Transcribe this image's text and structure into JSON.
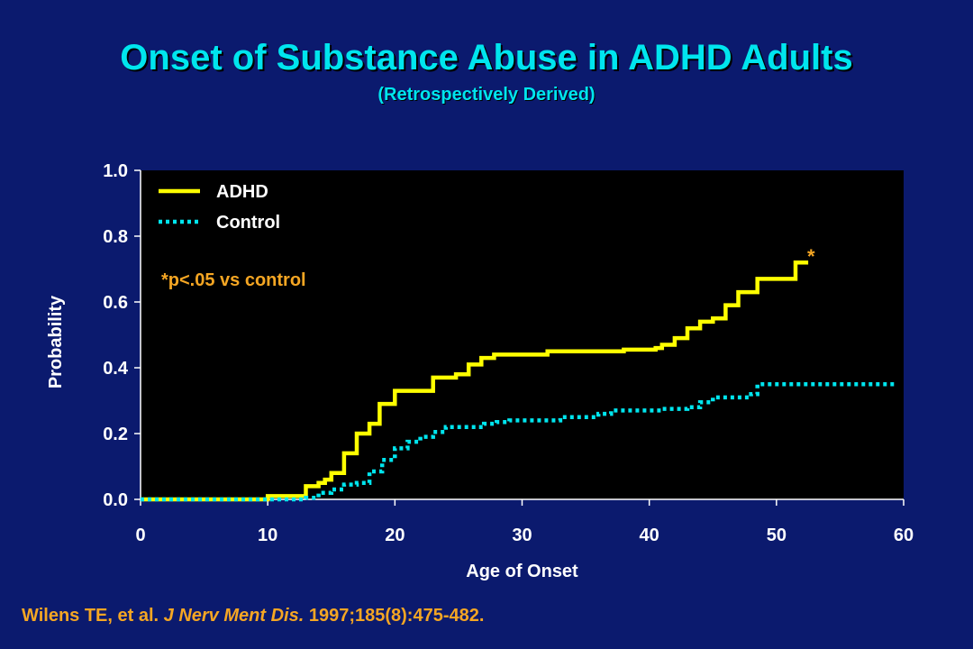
{
  "title": "Onset of Substance Abuse in ADHD Adults",
  "subtitle": "(Retrospectively Derived)",
  "citation": {
    "authors": "Wilens TE, et al.",
    "journal": "J Nerv Ment Dis.",
    "details": "1997;185(8):475-482."
  },
  "colors": {
    "background": "#0b1a6e",
    "plot_area": "#000000",
    "title": "#00e5ee",
    "adhd": "#ffff00",
    "control": "#00e5ee",
    "annotation": "#f5a623",
    "axis_text": "#ffffff"
  },
  "chart_data": {
    "type": "line",
    "xlabel": "Age of Onset",
    "ylabel": "Probability",
    "xlim": [
      0,
      60
    ],
    "ylim": [
      0,
      1.0
    ],
    "xticks": [
      "0",
      "10",
      "20",
      "30",
      "40",
      "50",
      "60"
    ],
    "yticks": [
      "0.0",
      "0.2",
      "0.4",
      "0.6",
      "0.8",
      "1.0"
    ],
    "grid": false,
    "legend": "top-left",
    "annotation": "*p<.05 vs control",
    "significance_marker": "*",
    "series": [
      {
        "name": "ADHD",
        "style": "solid",
        "points": [
          [
            0,
            0.0
          ],
          [
            10,
            0.0
          ],
          [
            10,
            0.01
          ],
          [
            13,
            0.01
          ],
          [
            13,
            0.04
          ],
          [
            14,
            0.04
          ],
          [
            14,
            0.05
          ],
          [
            14.5,
            0.05
          ],
          [
            14.5,
            0.06
          ],
          [
            15,
            0.06
          ],
          [
            15,
            0.08
          ],
          [
            16,
            0.08
          ],
          [
            16,
            0.14
          ],
          [
            17,
            0.14
          ],
          [
            17,
            0.2
          ],
          [
            18,
            0.2
          ],
          [
            18,
            0.23
          ],
          [
            18.8,
            0.23
          ],
          [
            18.8,
            0.29
          ],
          [
            20,
            0.29
          ],
          [
            20,
            0.33
          ],
          [
            23,
            0.33
          ],
          [
            23,
            0.37
          ],
          [
            24.8,
            0.37
          ],
          [
            24.8,
            0.38
          ],
          [
            25.8,
            0.38
          ],
          [
            25.8,
            0.41
          ],
          [
            26.8,
            0.41
          ],
          [
            26.8,
            0.43
          ],
          [
            27.8,
            0.43
          ],
          [
            27.8,
            0.44
          ],
          [
            32,
            0.44
          ],
          [
            32,
            0.45
          ],
          [
            38,
            0.45
          ],
          [
            38,
            0.455
          ],
          [
            40.5,
            0.455
          ],
          [
            40.5,
            0.46
          ],
          [
            41,
            0.46
          ],
          [
            41,
            0.47
          ],
          [
            42,
            0.47
          ],
          [
            42,
            0.49
          ],
          [
            43,
            0.49
          ],
          [
            43,
            0.52
          ],
          [
            44,
            0.52
          ],
          [
            44,
            0.54
          ],
          [
            45,
            0.54
          ],
          [
            45,
            0.55
          ],
          [
            46,
            0.55
          ],
          [
            46,
            0.59
          ],
          [
            47,
            0.59
          ],
          [
            47,
            0.63
          ],
          [
            48.5,
            0.63
          ],
          [
            48.5,
            0.67
          ],
          [
            51.5,
            0.67
          ],
          [
            51.5,
            0.72
          ],
          [
            52.5,
            0.72
          ]
        ]
      },
      {
        "name": "Control",
        "style": "dotted",
        "points": [
          [
            0,
            0.0
          ],
          [
            13,
            0.0
          ],
          [
            13,
            0.005
          ],
          [
            14,
            0.005
          ],
          [
            14,
            0.02
          ],
          [
            15,
            0.02
          ],
          [
            15,
            0.03
          ],
          [
            16,
            0.03
          ],
          [
            16,
            0.045
          ],
          [
            17,
            0.045
          ],
          [
            17,
            0.05
          ],
          [
            18,
            0.05
          ],
          [
            18,
            0.085
          ],
          [
            19,
            0.085
          ],
          [
            19,
            0.12
          ],
          [
            20,
            0.12
          ],
          [
            20,
            0.155
          ],
          [
            21,
            0.155
          ],
          [
            21,
            0.175
          ],
          [
            22,
            0.175
          ],
          [
            22,
            0.19
          ],
          [
            23,
            0.19
          ],
          [
            23,
            0.205
          ],
          [
            24,
            0.205
          ],
          [
            24,
            0.22
          ],
          [
            27,
            0.22
          ],
          [
            27,
            0.23
          ],
          [
            28,
            0.23
          ],
          [
            28,
            0.235
          ],
          [
            29,
            0.235
          ],
          [
            29,
            0.24
          ],
          [
            33,
            0.24
          ],
          [
            33,
            0.25
          ],
          [
            36,
            0.25
          ],
          [
            36,
            0.26
          ],
          [
            37,
            0.26
          ],
          [
            37,
            0.27
          ],
          [
            41,
            0.27
          ],
          [
            41,
            0.275
          ],
          [
            43,
            0.275
          ],
          [
            43,
            0.28
          ],
          [
            44,
            0.28
          ],
          [
            44,
            0.295
          ],
          [
            45,
            0.295
          ],
          [
            45,
            0.31
          ],
          [
            48,
            0.31
          ],
          [
            48,
            0.32
          ],
          [
            48.5,
            0.32
          ],
          [
            48.5,
            0.35
          ],
          [
            59.5,
            0.35
          ]
        ]
      }
    ]
  }
}
